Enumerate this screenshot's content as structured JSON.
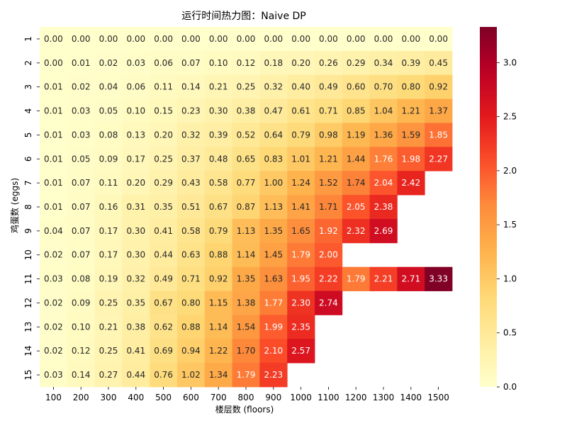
{
  "chart_data": {
    "type": "heatmap",
    "title": "运行时间热力图：Naive DP",
    "xlabel": "楼层数 (floors)",
    "ylabel": "鸡蛋数 (eggs)",
    "x_categories": [
      "100",
      "200",
      "300",
      "400",
      "500",
      "600",
      "700",
      "800",
      "900",
      "1000",
      "1100",
      "1200",
      "1300",
      "1400",
      "1500"
    ],
    "y_categories": [
      "1",
      "2",
      "3",
      "4",
      "5",
      "6",
      "7",
      "8",
      "9",
      "10",
      "11",
      "12",
      "13",
      "14",
      "15"
    ],
    "values": [
      [
        0.0,
        0.0,
        0.0,
        0.0,
        0.0,
        0.0,
        0.0,
        0.0,
        0.0,
        0.0,
        0.0,
        0.0,
        0.0,
        0.0,
        0.0
      ],
      [
        0.0,
        0.01,
        0.02,
        0.03,
        0.06,
        0.07,
        0.1,
        0.12,
        0.18,
        0.2,
        0.26,
        0.29,
        0.34,
        0.39,
        0.45
      ],
      [
        0.01,
        0.02,
        0.04,
        0.06,
        0.11,
        0.14,
        0.21,
        0.25,
        0.32,
        0.4,
        0.49,
        0.6,
        0.7,
        0.8,
        0.92
      ],
      [
        0.01,
        0.03,
        0.05,
        0.1,
        0.15,
        0.23,
        0.3,
        0.38,
        0.47,
        0.61,
        0.71,
        0.85,
        1.04,
        1.21,
        1.37
      ],
      [
        0.01,
        0.03,
        0.08,
        0.13,
        0.2,
        0.32,
        0.39,
        0.52,
        0.64,
        0.79,
        0.98,
        1.19,
        1.36,
        1.59,
        1.85
      ],
      [
        0.01,
        0.05,
        0.09,
        0.17,
        0.25,
        0.37,
        0.48,
        0.65,
        0.83,
        1.01,
        1.21,
        1.44,
        1.76,
        1.98,
        2.27
      ],
      [
        0.01,
        0.07,
        0.11,
        0.2,
        0.29,
        0.43,
        0.58,
        0.77,
        1.0,
        1.24,
        1.52,
        1.74,
        2.04,
        2.42,
        null
      ],
      [
        0.01,
        0.07,
        0.16,
        0.31,
        0.35,
        0.51,
        0.67,
        0.87,
        1.13,
        1.41,
        1.71,
        2.05,
        2.38,
        null,
        null
      ],
      [
        0.04,
        0.07,
        0.17,
        0.3,
        0.41,
        0.58,
        0.79,
        1.13,
        1.35,
        1.65,
        1.92,
        2.32,
        2.69,
        null,
        null
      ],
      [
        0.02,
        0.07,
        0.17,
        0.3,
        0.44,
        0.63,
        0.88,
        1.14,
        1.45,
        1.79,
        2.0,
        null,
        null,
        null,
        null
      ],
      [
        0.03,
        0.08,
        0.19,
        0.32,
        0.49,
        0.71,
        0.92,
        1.35,
        1.63,
        1.95,
        2.22,
        1.79,
        2.21,
        2.71,
        3.33
      ],
      [
        0.02,
        0.09,
        0.25,
        0.35,
        0.67,
        0.8,
        1.15,
        1.38,
        1.77,
        2.3,
        2.74,
        null,
        null,
        null,
        null
      ],
      [
        0.02,
        0.1,
        0.21,
        0.38,
        0.62,
        0.88,
        1.14,
        1.54,
        1.99,
        2.35,
        null,
        null,
        null,
        null,
        null
      ],
      [
        0.02,
        0.12,
        0.25,
        0.41,
        0.69,
        0.94,
        1.22,
        1.7,
        2.1,
        2.57,
        null,
        null,
        null,
        null,
        null
      ],
      [
        0.03,
        0.14,
        0.27,
        0.44,
        0.76,
        1.02,
        1.34,
        1.79,
        2.23,
        null,
        null,
        null,
        null,
        null,
        null
      ]
    ],
    "value_format_decimals": 2,
    "colormap": "YlOrRd",
    "vmin": 0.0,
    "vmax": 3.33,
    "colorbar_ticks": [
      "0.0",
      "0.5",
      "1.0",
      "1.5",
      "2.0",
      "2.5",
      "3.0"
    ],
    "legend_placement": "right"
  }
}
